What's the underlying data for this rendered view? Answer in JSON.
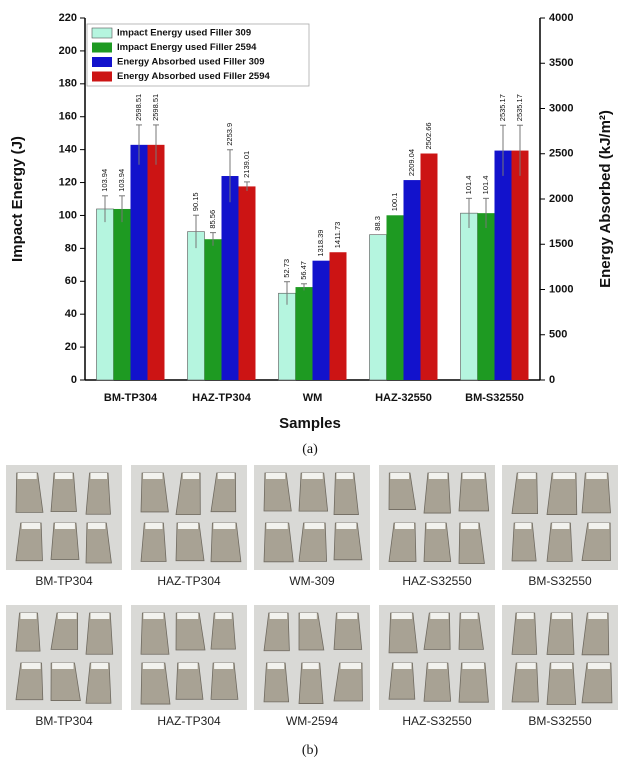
{
  "chart_data": {
    "type": "bar",
    "x_label": "Samples",
    "y_label": "Impact Energy (J)",
    "y2_label": "Energy Absorbed (kJ/m²)",
    "caption": "(a)",
    "categories": [
      "BM-TP304",
      "HAZ-TP304",
      "WM",
      "HAZ-32550",
      "BM-S32550"
    ],
    "series": [
      {
        "name": "Impact Energy used Filler 309",
        "color": "#b5f5df",
        "values": [
          103.94,
          90.15,
          52.73,
          88.3,
          101.4
        ],
        "errors": [
          8,
          10,
          7,
          null,
          9
        ]
      },
      {
        "name": "Impact Energy used Filler 2594",
        "color": "#1e9a22",
        "values": [
          103.94,
          85.56,
          56.47,
          100.1,
          101.4
        ],
        "errors": [
          8,
          4,
          2,
          null,
          9
        ]
      },
      {
        "name": "Energy Absorbed used Filler 309",
        "color": "#1212cc",
        "axis": "y2",
        "values": [
          2598.51,
          2253.9,
          1318.39,
          2209.04,
          2535.17
        ],
        "errors": [
          220,
          290,
          null,
          null,
          280
        ]
      },
      {
        "name": "Energy Absorbed used Filler 2594",
        "color": "#cc1414",
        "axis": "y2",
        "values": [
          2598.51,
          2139.01,
          1411.73,
          2502.66,
          2535.17
        ],
        "errors": [
          220,
          50,
          null,
          null,
          280
        ]
      }
    ],
    "ylim": [
      0,
      220
    ],
    "yticks": [
      0,
      20,
      40,
      60,
      80,
      100,
      120,
      140,
      160,
      180,
      200,
      220
    ],
    "y2lim": [
      0,
      4000
    ],
    "y2ticks": [
      0,
      500,
      1000,
      1500,
      2000,
      2500,
      3000,
      3500,
      4000
    ],
    "legend": "upper left",
    "grid": false
  },
  "photos": {
    "top_row": [
      "BM-TP304",
      "HAZ-TP304",
      "WM-309",
      "HAZ-S32550",
      "BM-S32550"
    ],
    "bottom_row": [
      "BM-TP304",
      "HAZ-TP304",
      "WM-2594",
      "HAZ-S32550",
      "BM-S32550"
    ],
    "caption": "(b)"
  }
}
